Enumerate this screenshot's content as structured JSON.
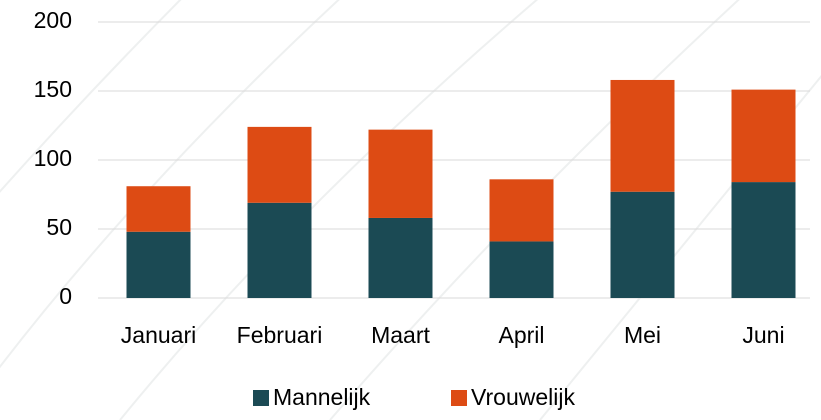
{
  "chart_data": {
    "type": "stacked_bar",
    "categories": [
      "Januari",
      "Februari",
      "Maart",
      "April",
      "Mei",
      "Juni"
    ],
    "series": [
      {
        "name": "Mannelijk",
        "color": "#1b4a54",
        "values": [
          48,
          69,
          58,
          41,
          77,
          84
        ]
      },
      {
        "name": "Vrouwelijk",
        "color": "#dd4b14",
        "values": [
          33,
          55,
          64,
          45,
          81,
          67
        ]
      }
    ],
    "ylim": [
      0,
      200
    ],
    "yticks": [
      0,
      50,
      100,
      150,
      200
    ],
    "grid": true,
    "legend": "bottom"
  }
}
